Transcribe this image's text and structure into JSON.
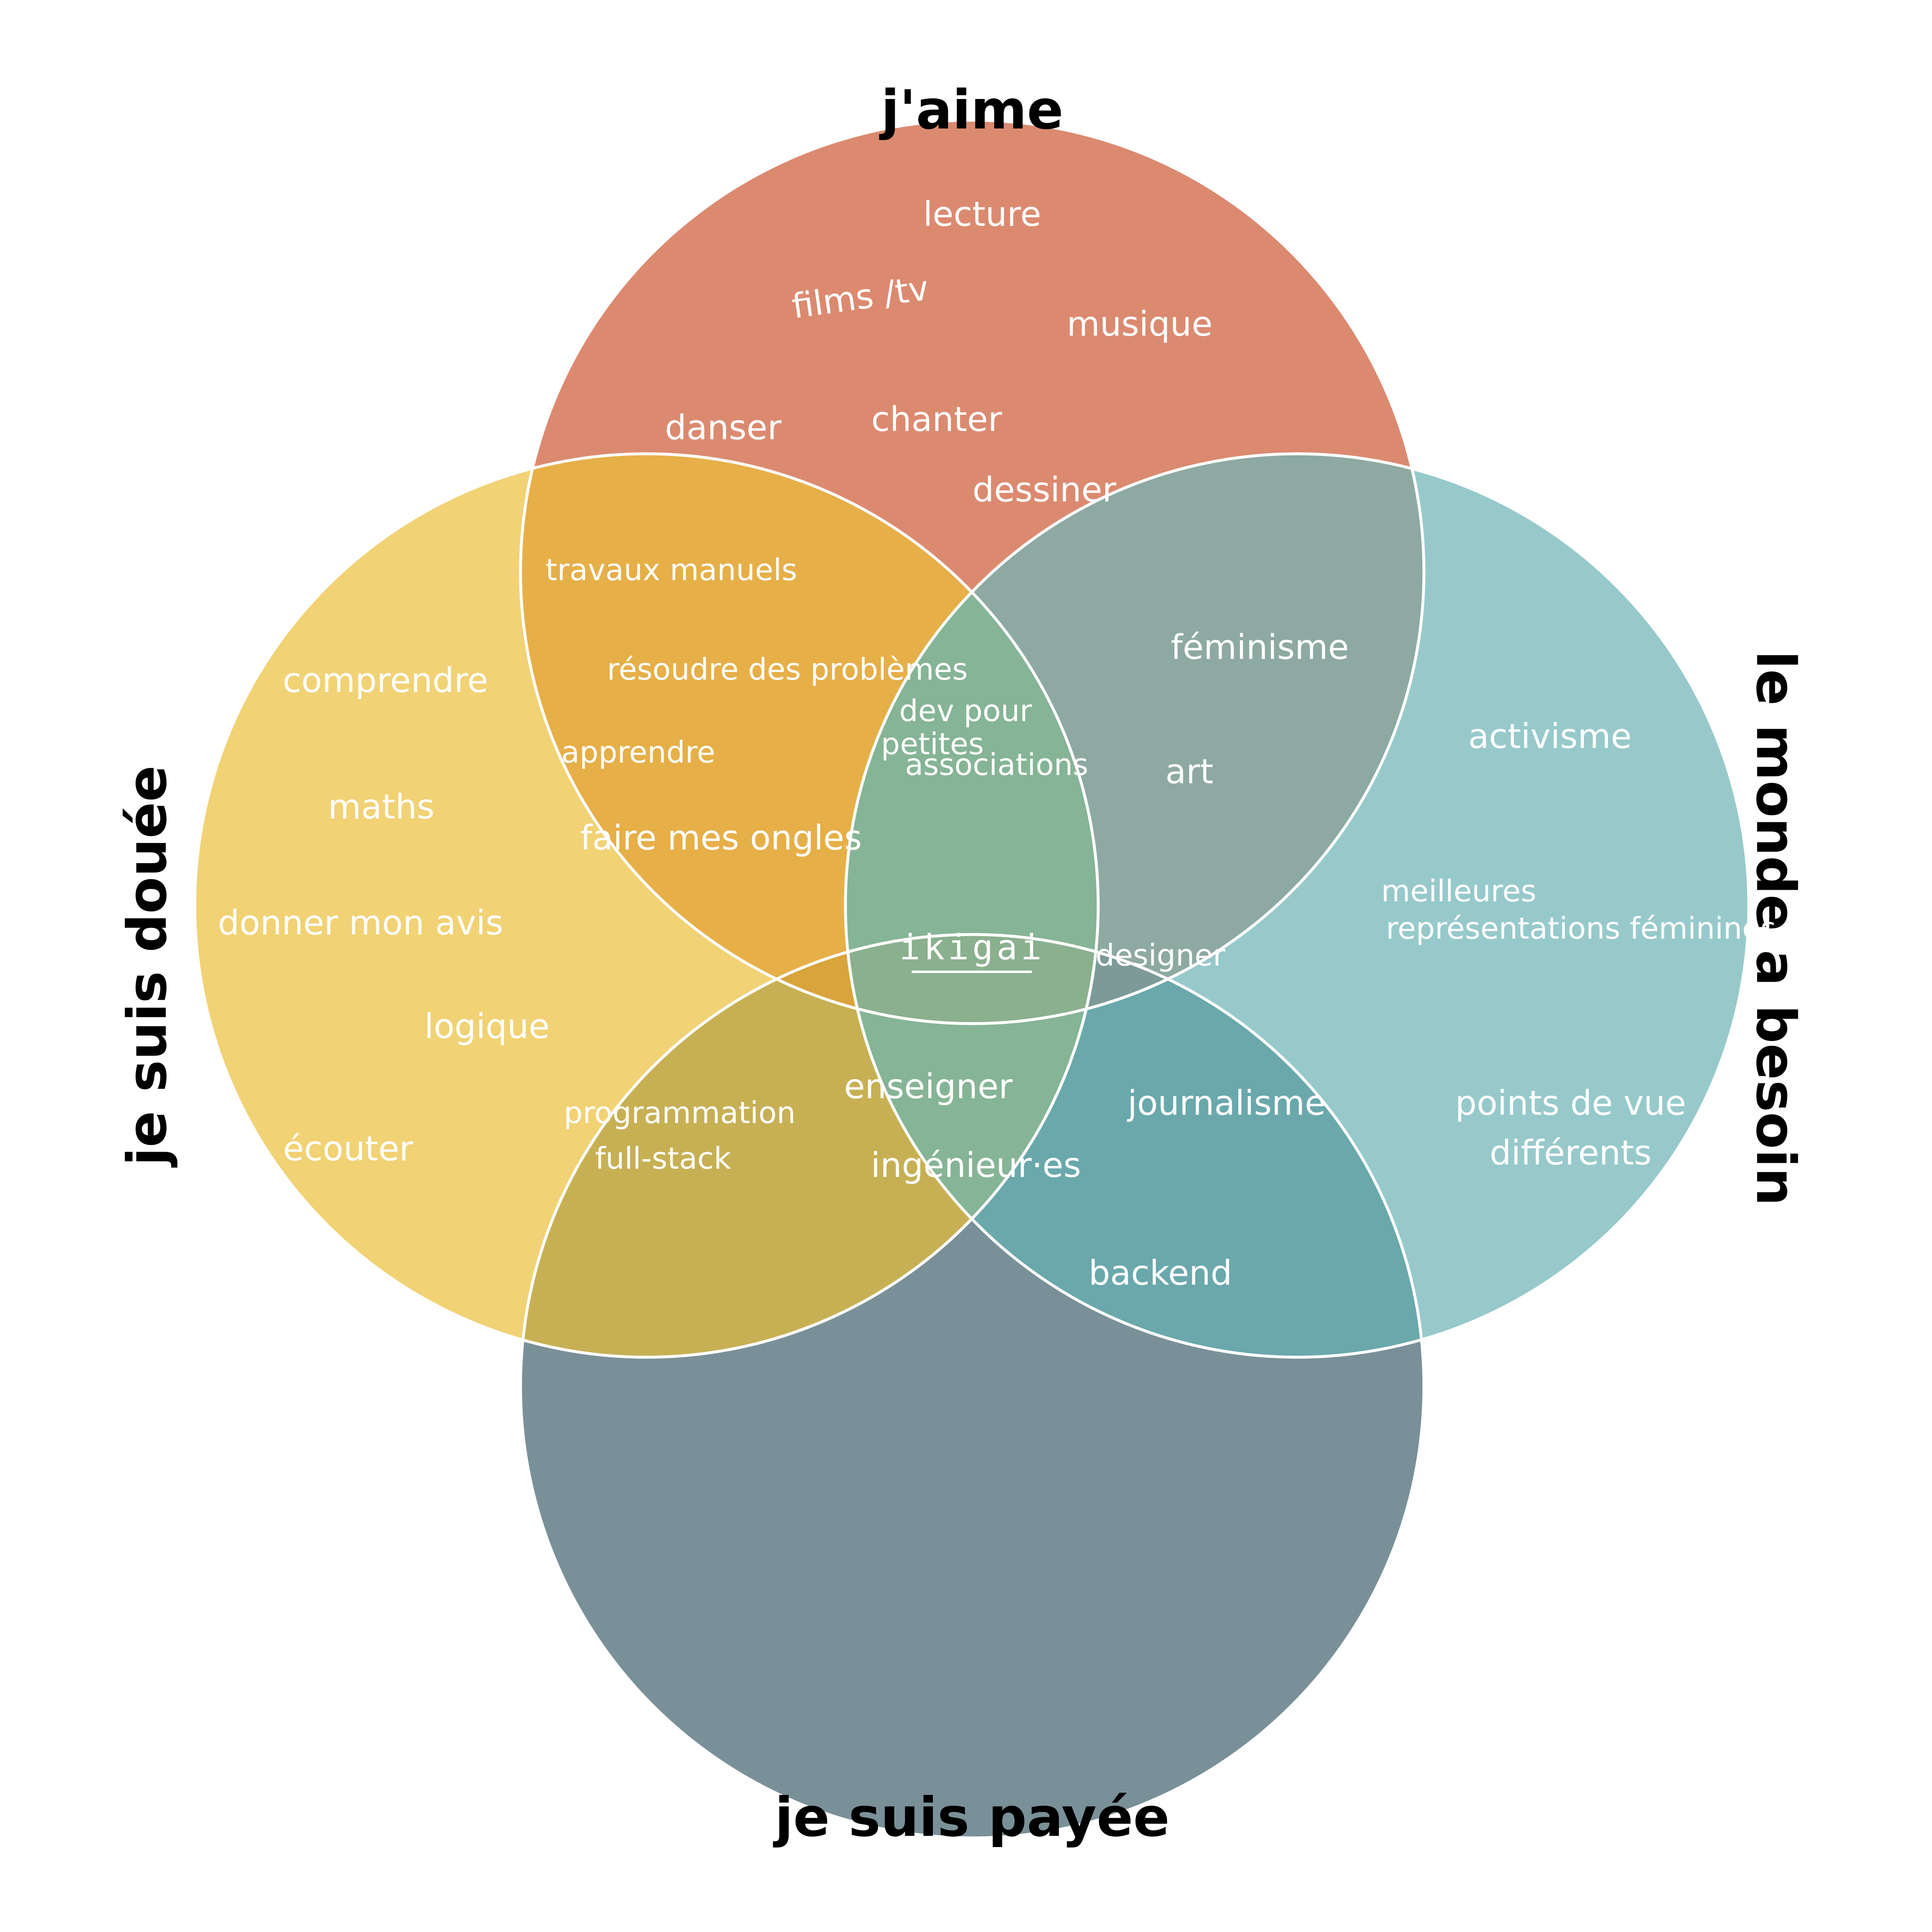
{
  "diagram": {
    "type": "venn-4",
    "titles": {
      "top": "j'aime",
      "left": "je suis douée",
      "right": "le monde a besoin",
      "bottom": "je suis payée"
    },
    "colors": {
      "love": "#DB8A70",
      "good": "#F1D275",
      "need": "#97C9CB",
      "paid": "#7A9098",
      "love_good": "#E6AF48",
      "love_need": "#8DA9A2",
      "good_paid": "#C7B054",
      "need_paid": "#6AA8AC",
      "core": "#8AB08E",
      "core_side": "#86B496",
      "core_left": "#D9A43C",
      "core_right": "#7D9A98",
      "outline": "#FFFFFF"
    },
    "center": "ikigai",
    "regions": {
      "love": [
        "lecture",
        "films /tv",
        "musique",
        "danser",
        "chanter",
        "dessiner"
      ],
      "good": [
        "comprendre",
        "maths",
        "donner mon avis",
        "logique",
        "écouter"
      ],
      "need": [
        "activisme",
        "meilleures",
        "représentations féminines",
        "points de vue",
        "différents"
      ],
      "love_good": [
        "travaux manuels",
        "résoudre des problèmes",
        "apprendre",
        "faire mes ongles"
      ],
      "love_need": [
        "féminisme",
        "art"
      ],
      "love_good_need": [
        "dev pour",
        "petites",
        "associations"
      ],
      "love_need_paid": [
        "designer"
      ],
      "good_paid": [
        "programmation",
        "full-stack"
      ],
      "good_need_paid": [
        "enseigner",
        "ingénieur·es"
      ],
      "need_paid": [
        "journalisme",
        "backend"
      ]
    }
  }
}
